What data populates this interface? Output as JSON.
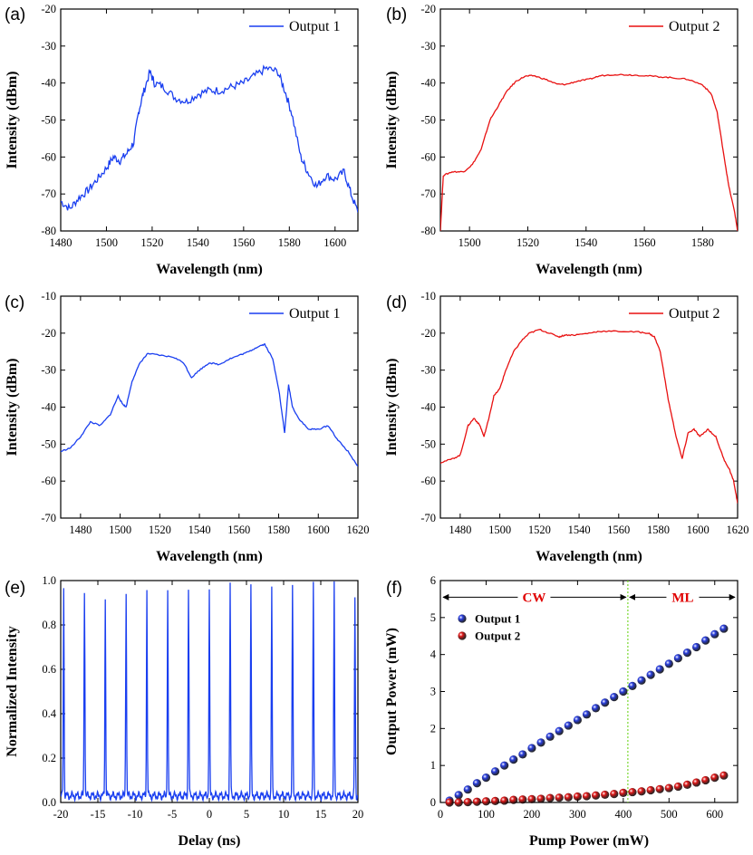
{
  "chart_data": [
    {
      "panel": "(a)",
      "type": "line",
      "color": "#1a3ff0",
      "legend": "Output 1",
      "xlabel": "Wavelength (nm)",
      "ylabel": "Intensity (dBm)",
      "xlim": [
        1480,
        1610
      ],
      "ylim": [
        -80,
        -20
      ],
      "xticks": [
        1480,
        1500,
        1520,
        1540,
        1560,
        1580,
        1600
      ],
      "yticks": [
        -80,
        -70,
        -60,
        -50,
        -40,
        -30,
        -20
      ],
      "x": [
        1480,
        1484,
        1488,
        1492,
        1496,
        1500,
        1503,
        1506,
        1509,
        1512,
        1514,
        1516,
        1519,
        1521,
        1525,
        1530,
        1535,
        1540,
        1545,
        1550,
        1555,
        1560,
        1565,
        1570,
        1575,
        1578,
        1581,
        1585,
        1588,
        1592,
        1596,
        1600,
        1604,
        1607,
        1610
      ],
      "y": [
        -72,
        -74,
        -71,
        -69,
        -66,
        -63,
        -60,
        -61,
        -59,
        -56,
        -48,
        -43,
        -37,
        -40,
        -41,
        -44,
        -45,
        -43,
        -42,
        -42,
        -41,
        -40,
        -38,
        -36,
        -37,
        -42,
        -48,
        -60,
        -64,
        -68,
        -65,
        -66,
        -64,
        -70,
        -75
      ]
    },
    {
      "panel": "(b)",
      "type": "line",
      "color": "#e81010",
      "legend": "Output 2",
      "xlabel": "Wavelength (nm)",
      "ylabel": "Intensity (dBm)",
      "xlim": [
        1490,
        1592
      ],
      "ylim": [
        -80,
        -20
      ],
      "xticks": [
        1500,
        1520,
        1540,
        1560,
        1580
      ],
      "yticks": [
        -80,
        -70,
        -60,
        -50,
        -40,
        -30,
        -20
      ],
      "x": [
        1490,
        1491,
        1494,
        1498,
        1501,
        1504,
        1507,
        1510,
        1513,
        1516,
        1519,
        1522,
        1526,
        1530,
        1533,
        1537,
        1541,
        1545,
        1550,
        1555,
        1560,
        1565,
        1570,
        1575,
        1580,
        1583,
        1585,
        1587,
        1589,
        1591,
        1592
      ],
      "y": [
        -80,
        -65,
        -64,
        -64,
        -62,
        -58,
        -50,
        -46,
        -42,
        -39.5,
        -38.2,
        -38,
        -39,
        -40.3,
        -40.4,
        -39.5,
        -39,
        -38,
        -37.7,
        -37.8,
        -38,
        -38.3,
        -38.6,
        -39,
        -40.5,
        -43,
        -48,
        -58,
        -68,
        -75,
        -80
      ]
    },
    {
      "panel": "(c)",
      "type": "line",
      "color": "#1a3ff0",
      "legend": "Output 1",
      "xlabel": "Wavelength (nm)",
      "ylabel": "Intensity (dBm)",
      "xlim": [
        1470,
        1620
      ],
      "ylim": [
        -70,
        -10
      ],
      "xticks": [
        1480,
        1500,
        1520,
        1540,
        1560,
        1580,
        1600,
        1620
      ],
      "yticks": [
        -70,
        -60,
        -50,
        -40,
        -30,
        -20,
        -10
      ],
      "x": [
        1470,
        1475,
        1480,
        1485,
        1490,
        1495,
        1499,
        1501,
        1503,
        1506,
        1510,
        1514,
        1520,
        1527,
        1532,
        1536,
        1540,
        1545,
        1550,
        1555,
        1560,
        1565,
        1570,
        1573,
        1577,
        1580,
        1583,
        1585,
        1587,
        1590,
        1595,
        1600,
        1605,
        1610,
        1615,
        1620
      ],
      "y": [
        -52,
        -51,
        -48,
        -44,
        -45,
        -42,
        -37,
        -39,
        -40,
        -33,
        -28,
        -25.5,
        -26,
        -26.5,
        -28,
        -32,
        -30,
        -28,
        -28.5,
        -27,
        -26,
        -25,
        -23.5,
        -23,
        -27,
        -35,
        -47,
        -34,
        -40,
        -43,
        -46,
        -46,
        -45,
        -49,
        -52,
        -56
      ]
    },
    {
      "panel": "(d)",
      "type": "line",
      "color": "#e81010",
      "legend": "Output 2",
      "xlabel": "Wavelength (nm)",
      "ylabel": "Intensity (dBm)",
      "xlim": [
        1470,
        1620
      ],
      "ylim": [
        -70,
        -10
      ],
      "xticks": [
        1480,
        1500,
        1520,
        1540,
        1560,
        1580,
        1600,
        1620
      ],
      "yticks": [
        -70,
        -60,
        -50,
        -40,
        -30,
        -20,
        -10
      ],
      "x": [
        1470,
        1476,
        1480,
        1484,
        1487,
        1490,
        1492,
        1494,
        1497,
        1500,
        1503,
        1507,
        1511,
        1515,
        1520,
        1525,
        1530,
        1533,
        1538,
        1545,
        1550,
        1560,
        1570,
        1575,
        1578,
        1581,
        1585,
        1589,
        1592,
        1595,
        1598,
        1601,
        1605,
        1609,
        1613,
        1616,
        1618,
        1620
      ],
      "y": [
        -55,
        -54,
        -53,
        -45,
        -43,
        -45,
        -48,
        -44,
        -37,
        -35,
        -30,
        -25,
        -22,
        -20,
        -19,
        -20,
        -21,
        -20.5,
        -20.5,
        -20,
        -19.5,
        -19.5,
        -19.7,
        -20,
        -21,
        -25,
        -38,
        -48,
        -54,
        -47,
        -46,
        -48,
        -46,
        -48,
        -54,
        -57,
        -60,
        -66
      ]
    },
    {
      "panel": "(e)",
      "type": "line",
      "color": "#1a3ff0",
      "xlabel": "Delay (ns)",
      "ylabel": "Normalized Intensity",
      "xlim": [
        -20,
        20
      ],
      "ylim": [
        0.0,
        1.0
      ],
      "xticks": [
        -20,
        -15,
        -10,
        -5,
        0,
        5,
        10,
        15,
        20
      ],
      "xtick_labels": [
        "-20",
        "-15",
        "-10",
        "-5",
        "0",
        "5",
        "10",
        "15",
        "20"
      ],
      "yticks": [
        0.0,
        0.2,
        0.4,
        0.6,
        0.8,
        1.0
      ],
      "ytick_labels": [
        "0.0",
        "0.2",
        "0.4",
        "0.6",
        "0.8",
        "1.0"
      ],
      "baseline": 0.03,
      "pulse_positions_ns": [
        -19.6,
        -16.8,
        -14.0,
        -11.2,
        -8.4,
        -5.6,
        -2.8,
        0.0,
        2.8,
        5.6,
        8.4,
        11.2,
        14.0,
        16.8,
        19.6
      ],
      "pulse_peaks": [
        0.97,
        0.96,
        0.92,
        0.96,
        0.96,
        0.97,
        0.96,
        0.96,
        0.99,
        0.97,
        0.97,
        0.96,
        0.99,
        0.98,
        0.92
      ]
    },
    {
      "panel": "(f)",
      "type": "scatter",
      "xlabel": "Pump Power (mW)",
      "ylabel": "Output Power (mW)",
      "xlim": [
        0,
        650
      ],
      "ylim": [
        0,
        6
      ],
      "xticks": [
        0,
        100,
        200,
        300,
        400,
        500,
        600
      ],
      "yticks": [
        0,
        1,
        2,
        3,
        4,
        5,
        6
      ],
      "threshold_x": 410,
      "regions": [
        "CW",
        "ML"
      ],
      "series": [
        {
          "name": "Output 1",
          "color": "#2a3fe0",
          "x": [
            20,
            40,
            60,
            80,
            100,
            120,
            140,
            160,
            180,
            200,
            220,
            240,
            260,
            280,
            300,
            320,
            340,
            360,
            380,
            400,
            420,
            440,
            460,
            480,
            500,
            520,
            540,
            560,
            580,
            600,
            620
          ],
          "y": [
            0.05,
            0.2,
            0.35,
            0.52,
            0.67,
            0.84,
            1.0,
            1.16,
            1.3,
            1.47,
            1.62,
            1.78,
            1.93,
            2.08,
            2.23,
            2.38,
            2.55,
            2.7,
            2.85,
            3.0,
            3.15,
            3.3,
            3.45,
            3.6,
            3.75,
            3.9,
            4.05,
            4.2,
            4.38,
            4.55,
            4.7
          ]
        },
        {
          "name": "Output 2",
          "color": "#e01818",
          "x": [
            20,
            40,
            60,
            80,
            100,
            120,
            140,
            160,
            180,
            200,
            220,
            240,
            260,
            280,
            300,
            320,
            340,
            360,
            380,
            400,
            420,
            440,
            460,
            480,
            500,
            520,
            540,
            560,
            580,
            600,
            620
          ],
          "y": [
            0.0,
            0.0,
            0.01,
            0.02,
            0.03,
            0.04,
            0.05,
            0.07,
            0.08,
            0.09,
            0.1,
            0.12,
            0.13,
            0.14,
            0.16,
            0.17,
            0.19,
            0.21,
            0.23,
            0.26,
            0.28,
            0.3,
            0.33,
            0.36,
            0.39,
            0.43,
            0.48,
            0.54,
            0.6,
            0.67,
            0.73
          ]
        }
      ]
    }
  ]
}
